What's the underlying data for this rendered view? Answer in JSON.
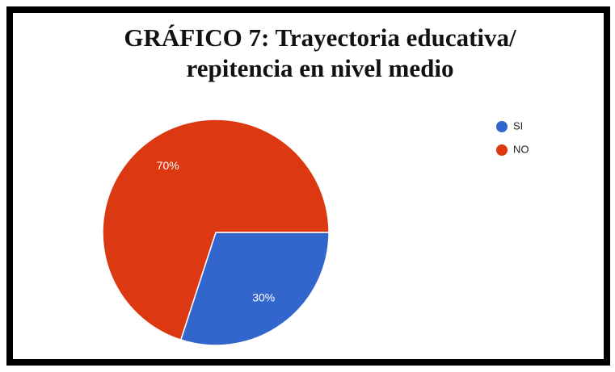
{
  "chart_data": {
    "type": "pie",
    "title": [
      "GRÁFICO 7: Trayectoria educativa/",
      "repitencia en nivel medio"
    ],
    "categories": [
      "SI",
      "NO"
    ],
    "values": [
      30,
      70
    ],
    "value_labels": [
      "30%",
      "70%"
    ],
    "colors": [
      "#3366cc",
      "#dc3912"
    ],
    "legend": "right"
  }
}
